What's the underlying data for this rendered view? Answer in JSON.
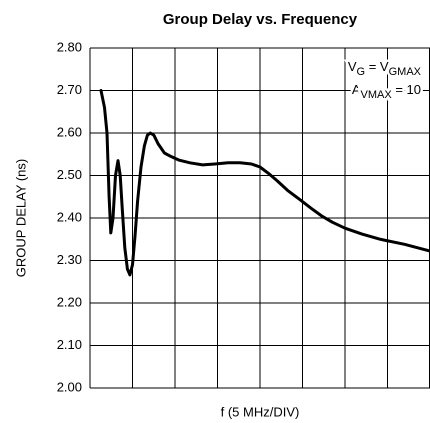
{
  "chart_data": {
    "type": "line",
    "title": "Group Delay vs. Frequency",
    "xlabel": "f (5 MHz/DIV)",
    "ylabel": "GROUP DELAY (ns)",
    "annotations": [
      [
        {
          "text": "V"
        },
        {
          "text": "G",
          "sub": true
        },
        {
          "text": " = V"
        },
        {
          "text": "GMAX",
          "sub": true
        }
      ],
      [
        {
          "text": "A"
        },
        {
          "text": "VMAX",
          "sub": true
        },
        {
          "text": " = 10"
        }
      ]
    ],
    "x": [
      0.26,
      0.34,
      0.4,
      0.45,
      0.49,
      0.54,
      0.6,
      0.66,
      0.71,
      0.76,
      0.82,
      0.88,
      0.94,
      1.0,
      1.06,
      1.12,
      1.2,
      1.28,
      1.35,
      1.42,
      1.5,
      1.6,
      1.75,
      1.9,
      2.1,
      2.35,
      2.65,
      2.94,
      3.25,
      3.53,
      3.8,
      4.0,
      4.2,
      4.4,
      4.65,
      4.94,
      5.2,
      5.45,
      5.7,
      6.0,
      6.4,
      6.82,
      7.4,
      8.0
    ],
    "series": [
      {
        "name": "Group Delay",
        "color": "#000000",
        "values": [
          2.7,
          2.66,
          2.6,
          2.45,
          2.365,
          2.4,
          2.5,
          2.535,
          2.5,
          2.42,
          2.33,
          2.28,
          2.266,
          2.29,
          2.36,
          2.44,
          2.52,
          2.57,
          2.595,
          2.6,
          2.595,
          2.575,
          2.553,
          2.545,
          2.536,
          2.53,
          2.525,
          2.527,
          2.53,
          2.53,
          2.527,
          2.52,
          2.505,
          2.488,
          2.465,
          2.443,
          2.423,
          2.405,
          2.39,
          2.376,
          2.362,
          2.35,
          2.338,
          2.322
        ]
      }
    ],
    "xlim": [
      0,
      8
    ],
    "xticks": [
      0,
      1,
      2,
      3,
      4,
      5,
      6,
      7,
      8
    ],
    "ylim": [
      2.0,
      2.8
    ],
    "yticks": [
      {
        "value": 2.0,
        "label": "2.00"
      },
      {
        "value": 2.1,
        "label": "2.10"
      },
      {
        "value": 2.2,
        "label": "2.20"
      },
      {
        "value": 2.3,
        "label": "2.30"
      },
      {
        "value": 2.4,
        "label": "2.40"
      },
      {
        "value": 2.5,
        "label": "2.50"
      },
      {
        "value": 2.6,
        "label": "2.60"
      },
      {
        "value": 2.7,
        "label": "2.70"
      },
      {
        "value": 2.8,
        "label": "2.80"
      }
    ],
    "grid": true
  }
}
